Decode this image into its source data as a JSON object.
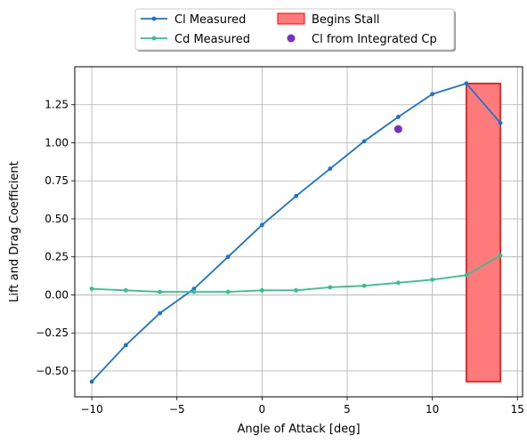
{
  "chart_data": {
    "type": "line",
    "title": "",
    "xlabel": "Angle of Attack [deg]",
    "ylabel": "Lift and Drag Coefficient",
    "xlim": [
      -11,
      15.3
    ],
    "ylim": [
      -0.67,
      1.5
    ],
    "xticks": [
      -10,
      -5,
      0,
      5,
      10,
      15
    ],
    "xtick_labels": [
      "−10",
      "−5",
      "0",
      "5",
      "10",
      "15"
    ],
    "yticks": [
      -0.5,
      -0.25,
      0.0,
      0.25,
      0.5,
      0.75,
      1.0,
      1.25
    ],
    "ytick_labels": [
      "−0.50",
      "−0.25",
      "0.00",
      "0.25",
      "0.50",
      "0.75",
      "1.00",
      "1.25"
    ],
    "grid": true,
    "legend_position": "top-center-outside",
    "series": [
      {
        "name": "Cl Measured",
        "type": "line",
        "color": "#1874cd",
        "x": [
          -10,
          -8,
          -6,
          -4,
          -2,
          0,
          2,
          4,
          6,
          8,
          10,
          12,
          14
        ],
        "y": [
          -0.57,
          -0.33,
          -0.12,
          0.04,
          0.25,
          0.46,
          0.65,
          0.83,
          1.01,
          1.17,
          1.32,
          1.39,
          1.13
        ]
      },
      {
        "name": "Cd Measured",
        "type": "line",
        "color": "#2ec28e",
        "x": [
          -10,
          -8,
          -6,
          -4,
          -2,
          0,
          2,
          4,
          6,
          8,
          10,
          12,
          14
        ],
        "y": [
          0.04,
          0.03,
          0.02,
          0.02,
          0.02,
          0.03,
          0.03,
          0.05,
          0.06,
          0.08,
          0.1,
          0.13,
          0.26
        ]
      },
      {
        "name": "Cl from Integrated Cp",
        "type": "scatter",
        "color": "#7b2fc8",
        "x": [
          8
        ],
        "y": [
          1.09
        ]
      }
    ],
    "regions": [
      {
        "name": "Begins Stall",
        "x0": 12,
        "x1": 14,
        "y0": -0.57,
        "y1": 1.39,
        "fill": "#ff7b7b",
        "edge": "#ff0000"
      }
    ]
  }
}
